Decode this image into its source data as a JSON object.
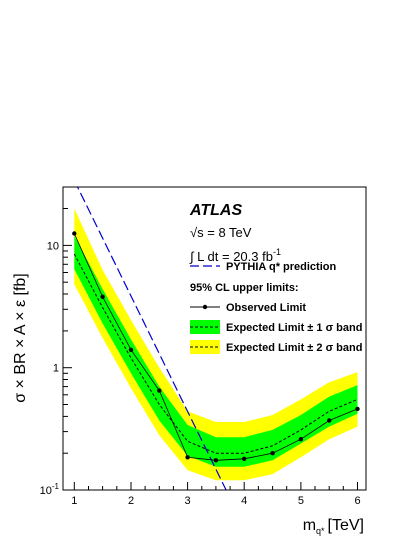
{
  "chart_data": {
    "type": "line",
    "xlabel": "m",
    "xlabel_sub": "q*",
    "xlabel_unit": "[TeV]",
    "ylabel": "σ × BR × A × ε  [fb]",
    "xlim": [
      0.8,
      6.15
    ],
    "ylim": [
      0.1,
      30
    ],
    "yscale": "log",
    "x_ticks": [
      1,
      2,
      3,
      4,
      5,
      6
    ],
    "y_ticks": [
      {
        "value": 0.1,
        "label": "10",
        "sup": "-1"
      },
      {
        "value": 1,
        "label": "1",
        "sup": ""
      },
      {
        "value": 10,
        "label": "10",
        "sup": ""
      }
    ],
    "experiment": "ATLAS",
    "energy_label": "√s = 8 TeV",
    "lumi_label": "∫ L dt = 20.3 fb",
    "lumi_sup": "-1",
    "legend_header": "95% CL upper limits:",
    "series": [
      {
        "name": "PYTHIA q* prediction",
        "color": "#0000cc",
        "style": "long-dash",
        "x": [
          1.0,
          3.68
        ],
        "y": [
          34.0,
          0.1
        ]
      },
      {
        "name": "Observed Limit",
        "color": "#000000",
        "style": "solid-markers",
        "x": [
          1.0,
          1.5,
          2.0,
          2.5,
          3.0,
          3.5,
          4.0,
          4.5,
          5.0,
          5.5,
          6.0
        ],
        "y": [
          12.5,
          3.8,
          1.4,
          0.65,
          0.185,
          0.175,
          0.18,
          0.2,
          0.26,
          0.37,
          0.46
        ]
      },
      {
        "name": "Expected Limit ± 1 σ band",
        "color": "#00ff00",
        "style": "dashed-median",
        "x": [
          1.0,
          1.5,
          2.0,
          2.5,
          3.0,
          3.5,
          4.0,
          4.5,
          5.0,
          5.5,
          6.0
        ],
        "median": [
          8.5,
          3.1,
          1.2,
          0.5,
          0.25,
          0.2,
          0.2,
          0.23,
          0.31,
          0.44,
          0.55
        ],
        "low": [
          6.4,
          2.3,
          0.9,
          0.37,
          0.19,
          0.155,
          0.155,
          0.175,
          0.24,
          0.33,
          0.42
        ],
        "high": [
          12.0,
          4.4,
          1.7,
          0.7,
          0.34,
          0.27,
          0.27,
          0.31,
          0.41,
          0.58,
          0.72
        ]
      },
      {
        "name": "Expected Limit ± 2 σ band",
        "color": "#ffff00",
        "style": "dashed-median",
        "x": [
          1.0,
          1.5,
          2.0,
          2.5,
          3.0,
          3.5,
          4.0,
          4.5,
          5.0,
          5.5,
          6.0
        ],
        "median": [
          8.5,
          3.1,
          1.2,
          0.5,
          0.25,
          0.2,
          0.2,
          0.23,
          0.31,
          0.44,
          0.55
        ],
        "low": [
          4.8,
          1.75,
          0.68,
          0.28,
          0.145,
          0.12,
          0.12,
          0.135,
          0.185,
          0.26,
          0.33
        ],
        "high": [
          20.0,
          6.3,
          2.45,
          1.0,
          0.44,
          0.36,
          0.36,
          0.41,
          0.55,
          0.76,
          0.92
        ]
      }
    ]
  }
}
